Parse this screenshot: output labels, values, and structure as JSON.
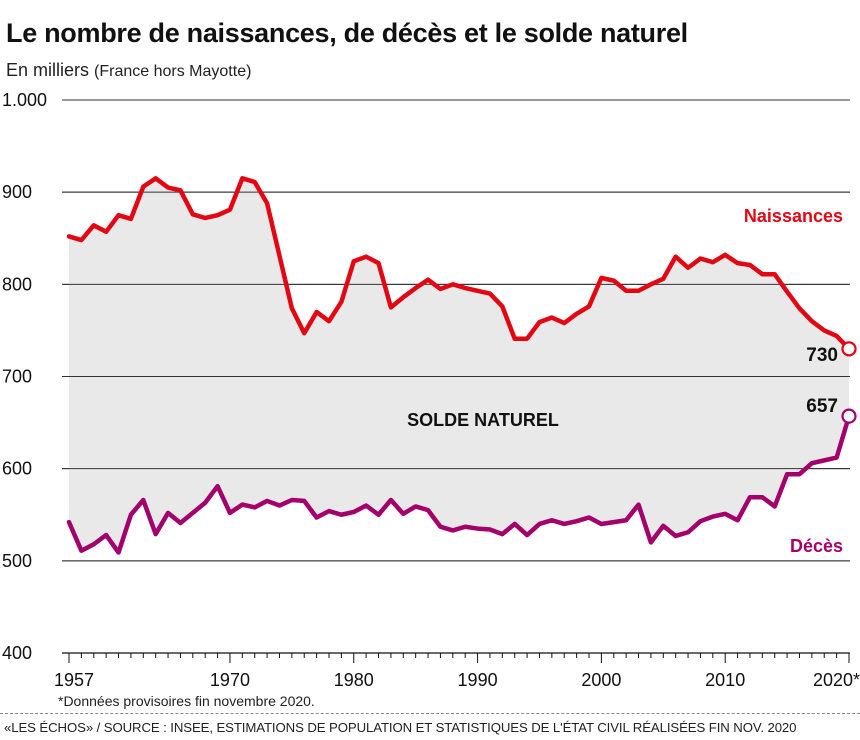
{
  "header": {
    "title": "Le nombre de naissances, de décès et le solde naturel",
    "subtitle_main": "En milliers",
    "subtitle_paren": "(France hors Mayotte)"
  },
  "chart_data": {
    "type": "line",
    "title": "Le nombre de naissances, de décès et le solde naturel",
    "subtitle": "En milliers (France hors Mayotte)",
    "xlabel": "",
    "ylabel": "",
    "xlim": [
      1957,
      2020
    ],
    "ylim": [
      400,
      1000
    ],
    "yticks": [
      400,
      500,
      600,
      700,
      800,
      900,
      1000
    ],
    "ytick_labels": [
      "400",
      "500",
      "600",
      "700",
      "800",
      "900",
      "1.000"
    ],
    "xticks": [
      1957,
      1970,
      1980,
      1990,
      2000,
      2010,
      2020
    ],
    "xtick_labels": [
      "1957",
      "1970",
      "1980",
      "1990",
      "2000",
      "2010",
      "2020*"
    ],
    "area_label": "SOLDE NATUREL",
    "series": [
      {
        "name": "Naissances",
        "color": "#e30613",
        "end_label": "730",
        "x": [
          1957,
          1958,
          1959,
          1960,
          1961,
          1962,
          1963,
          1964,
          1965,
          1966,
          1967,
          1968,
          1969,
          1970,
          1971,
          1972,
          1973,
          1974,
          1975,
          1976,
          1977,
          1978,
          1979,
          1980,
          1981,
          1982,
          1983,
          1984,
          1985,
          1986,
          1987,
          1988,
          1989,
          1990,
          1991,
          1992,
          1993,
          1994,
          1995,
          1996,
          1997,
          1998,
          1999,
          2000,
          2001,
          2002,
          2003,
          2004,
          2005,
          2006,
          2007,
          2008,
          2009,
          2010,
          2011,
          2012,
          2013,
          2014,
          2015,
          2016,
          2017,
          2018,
          2019,
          2020
        ],
        "values": [
          852,
          848,
          864,
          857,
          875,
          871,
          906,
          915,
          905,
          902,
          876,
          872,
          875,
          881,
          915,
          911,
          888,
          831,
          774,
          747,
          770,
          760,
          781,
          825,
          830,
          823,
          775,
          786,
          796,
          805,
          795,
          800,
          796,
          793,
          790,
          776,
          741,
          741,
          759,
          764,
          758,
          768,
          776,
          807,
          804,
          793,
          793,
          800,
          806,
          830,
          818,
          828,
          824,
          832,
          823,
          821,
          811,
          811,
          792,
          774,
          760,
          750,
          744,
          730
        ]
      },
      {
        "name": "Décès",
        "color": "#a3006b",
        "end_label": "657",
        "x": [
          1957,
          1958,
          1959,
          1960,
          1961,
          1962,
          1963,
          1964,
          1965,
          1966,
          1967,
          1968,
          1969,
          1970,
          1971,
          1972,
          1973,
          1974,
          1975,
          1976,
          1977,
          1978,
          1979,
          1980,
          1981,
          1982,
          1983,
          1984,
          1985,
          1986,
          1987,
          1988,
          1989,
          1990,
          1991,
          1992,
          1993,
          1994,
          1995,
          1996,
          1997,
          1998,
          1999,
          2000,
          2001,
          2002,
          2003,
          2004,
          2005,
          2006,
          2007,
          2008,
          2009,
          2010,
          2011,
          2012,
          2013,
          2014,
          2015,
          2016,
          2017,
          2018,
          2019,
          2020
        ],
        "values": [
          542,
          511,
          518,
          528,
          509,
          550,
          566,
          529,
          552,
          541,
          552,
          563,
          581,
          552,
          561,
          558,
          565,
          560,
          566,
          565,
          547,
          554,
          550,
          553,
          560,
          550,
          566,
          551,
          559,
          555,
          537,
          533,
          537,
          535,
          534,
          529,
          540,
          528,
          540,
          544,
          540,
          543,
          547,
          540,
          542,
          544,
          561,
          520,
          538,
          527,
          531,
          543,
          548,
          551,
          544,
          569,
          569,
          559,
          594,
          594,
          606,
          609,
          612,
          657
        ]
      }
    ],
    "legend": "inline labels at right end of each line"
  },
  "footer": {
    "footnote": "*Données provisoires fin novembre 2020.",
    "source": "«LES ÉCHOS» / SOURCE : INSEE, ESTIMATIONS DE POPULATION ET STATISTIQUES DE L'ÉTAT CIVIL RÉALISÉES FIN NOV. 2020"
  }
}
